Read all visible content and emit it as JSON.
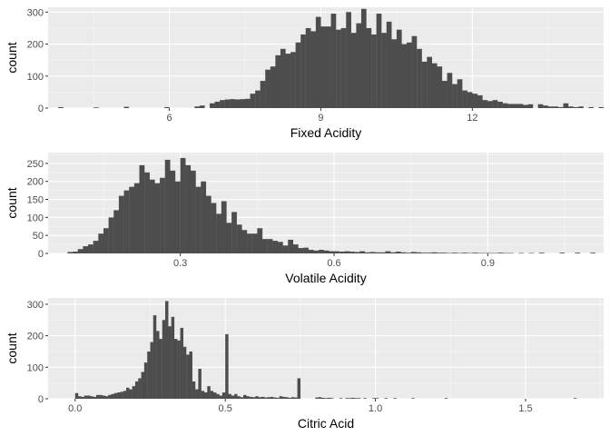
{
  "colors": {
    "panel_bg": "#EBEBEB",
    "grid_major": "#FFFFFF",
    "bar_fill": "#4D4D4D",
    "tick_text": "#4D4D4D"
  },
  "chart_data": [
    {
      "type": "bar",
      "xlabel": "Fixed Acidity",
      "ylabel": "count",
      "xlim": [
        3.6,
        14.6
      ],
      "ylim": [
        0,
        315
      ],
      "x_ticks": [
        6,
        9,
        12
      ],
      "x_tick_labels": [
        "6",
        "9",
        "12"
      ],
      "y_ticks": [
        0,
        100,
        200,
        300
      ],
      "y_tick_labels": [
        "0",
        "100",
        "200",
        "300"
      ],
      "grid": true,
      "bin_width": 0.1,
      "bin_start": 3.8,
      "values": [
        3,
        0,
        0,
        0,
        0,
        0,
        0,
        2,
        0,
        0,
        0,
        0,
        0,
        4,
        0,
        0,
        0,
        0,
        0,
        0,
        0,
        3,
        0,
        0,
        0,
        0,
        0,
        5,
        8,
        0,
        15,
        20,
        25,
        27,
        28,
        27,
        28,
        29,
        45,
        55,
        85,
        120,
        130,
        165,
        185,
        170,
        175,
        205,
        230,
        250,
        240,
        285,
        255,
        255,
        295,
        245,
        250,
        300,
        235,
        265,
        310,
        250,
        230,
        295,
        235,
        270,
        215,
        245,
        200,
        205,
        225,
        185,
        145,
        160,
        140,
        130,
        85,
        110,
        75,
        90,
        55,
        50,
        45,
        40,
        25,
        22,
        25,
        20,
        15,
        13,
        13,
        13,
        10,
        12,
        0,
        12,
        8,
        5,
        5,
        3,
        15,
        5,
        3,
        5,
        0,
        3,
        0,
        3,
        0,
        0,
        0,
        3,
        0,
        0,
        0,
        0,
        0,
        0,
        0,
        3,
        0,
        0,
        0,
        0,
        0,
        0,
        0,
        3,
        0,
        0,
        0,
        0,
        0,
        0,
        0,
        0,
        0,
        0,
        0,
        0,
        0,
        0,
        0,
        0,
        0,
        0,
        0,
        0,
        3,
        0,
        0,
        0,
        0,
        0,
        0,
        0,
        0,
        0,
        0,
        0,
        0,
        0,
        0,
        0,
        0,
        0,
        0,
        0,
        0,
        0,
        0,
        0,
        0,
        3,
        0,
        0
      ]
    },
    {
      "type": "bar",
      "xlabel": "Volatile Acidity",
      "ylabel": "count",
      "xlim": [
        0.042,
        1.126
      ],
      "ylim": [
        0,
        280
      ],
      "x_ticks": [
        0.3,
        0.6,
        0.9
      ],
      "x_tick_labels": [
        "0.3",
        "0.6",
        "0.9"
      ],
      "y_ticks": [
        0,
        50,
        100,
        150,
        200,
        250
      ],
      "y_tick_labels": [
        "0",
        "50",
        "100",
        "150",
        "200",
        "250"
      ],
      "grid": true,
      "bin_width": 0.01,
      "bin_start": 0.08,
      "values": [
        4,
        5,
        12,
        20,
        25,
        35,
        55,
        70,
        100,
        120,
        160,
        175,
        185,
        195,
        245,
        225,
        205,
        195,
        210,
        260,
        230,
        200,
        265,
        245,
        230,
        185,
        200,
        160,
        140,
        110,
        145,
        85,
        115,
        80,
        65,
        55,
        55,
        70,
        40,
        40,
        35,
        32,
        22,
        38,
        25,
        15,
        16,
        10,
        8,
        10,
        8,
        6,
        6,
        5,
        6,
        5,
        4,
        6,
        3,
        4,
        3,
        3,
        6,
        3,
        5,
        3,
        2,
        4,
        3,
        2,
        2,
        3,
        2,
        2,
        1,
        2,
        1,
        2,
        1,
        2,
        1,
        1,
        1,
        1,
        2,
        1,
        1,
        0,
        1,
        0,
        1,
        0,
        2,
        0,
        0,
        0,
        2,
        0,
        0,
        2,
        0,
        0,
        2,
        0,
        0,
        0,
        0,
        0,
        0,
        0,
        2,
        0,
        0,
        0,
        0,
        0,
        0,
        1,
        0,
        0,
        1,
        0,
        0,
        1,
        0,
        0,
        0,
        0,
        0,
        0,
        0,
        0,
        0,
        0,
        0,
        0,
        0,
        0,
        0,
        0,
        0,
        0,
        0,
        0,
        0,
        0,
        0,
        0,
        0,
        0,
        1,
        0,
        0,
        0,
        0,
        0,
        0,
        0,
        0,
        0,
        0,
        0,
        0,
        0,
        0,
        0,
        0,
        0,
        0,
        0,
        0,
        0,
        0,
        0,
        0,
        0,
        0,
        0,
        0,
        0,
        0,
        0,
        0,
        0,
        0,
        0,
        0,
        0,
        0,
        0,
        0,
        0,
        0,
        0,
        0,
        0,
        0,
        0,
        0,
        0,
        0,
        0,
        0,
        0,
        0,
        0,
        0,
        0,
        0,
        0,
        0,
        0,
        0,
        0,
        0,
        0,
        0,
        0,
        0,
        0,
        0,
        0,
        0,
        0,
        0,
        0,
        0,
        0,
        0,
        0,
        0,
        0,
        0,
        0,
        0,
        0,
        0,
        0,
        0,
        0,
        0,
        0,
        0,
        0,
        0,
        0,
        0,
        0,
        0,
        0,
        0,
        0,
        0,
        0,
        0,
        0,
        0,
        0,
        0,
        0,
        0,
        0,
        0,
        0,
        0,
        0,
        0,
        0,
        0,
        0,
        0,
        0,
        0,
        0,
        0,
        0,
        0,
        0,
        0,
        0,
        0,
        0,
        0,
        0,
        0,
        0,
        0,
        0,
        0,
        0,
        0,
        0,
        0,
        0,
        0,
        0,
        0,
        0,
        0,
        0,
        0,
        0,
        0,
        0,
        0,
        0,
        0,
        0,
        1
      ]
    },
    {
      "type": "bar",
      "xlabel": "Citric Acid",
      "ylabel": "count",
      "xlim": [
        -0.09,
        1.76
      ],
      "ylim": [
        0,
        320
      ],
      "x_ticks": [
        0.0,
        0.5,
        1.0,
        1.5
      ],
      "x_tick_labels": [
        "0.0",
        "0.5",
        "1.0",
        "1.5"
      ],
      "y_ticks": [
        0,
        100,
        200,
        300
      ],
      "y_tick_labels": [
        "0",
        "100",
        "200",
        "300"
      ],
      "grid": true,
      "bin_width": 0.01,
      "bin_start": 0.0,
      "values": [
        18,
        8,
        6,
        10,
        10,
        8,
        6,
        12,
        12,
        10,
        8,
        12,
        15,
        18,
        20,
        22,
        25,
        35,
        30,
        40,
        55,
        65,
        85,
        115,
        150,
        180,
        265,
        215,
        190,
        250,
        310,
        230,
        260,
        190,
        185,
        225,
        165,
        140,
        150,
        55,
        30,
        95,
        25,
        20,
        40,
        25,
        20,
        15,
        10,
        20,
        205,
        15,
        10,
        15,
        8,
        5,
        12,
        8,
        6,
        5,
        8,
        5,
        6,
        4,
        5,
        6,
        4,
        3,
        8,
        6,
        5,
        3,
        5,
        4,
        65,
        0,
        0,
        0,
        0,
        0,
        4,
        5,
        3,
        2,
        3,
        2,
        0,
        0,
        2,
        0,
        2,
        2,
        3,
        2,
        2,
        0,
        2,
        0,
        0,
        2,
        2,
        0,
        0,
        2,
        0,
        0,
        2,
        0,
        0,
        0,
        0,
        0,
        2,
        0,
        0,
        0,
        0,
        0,
        0,
        0,
        0,
        0,
        0,
        2,
        0,
        0,
        0,
        0,
        0,
        0,
        0,
        0,
        0,
        0,
        0,
        0,
        0,
        0,
        0,
        0,
        0,
        0,
        0,
        0,
        0,
        0,
        0,
        0,
        0,
        0,
        0,
        0,
        0,
        0,
        0,
        0,
        0,
        0,
        0,
        0,
        0,
        0,
        0,
        0,
        0,
        0,
        2
      ]
    }
  ]
}
